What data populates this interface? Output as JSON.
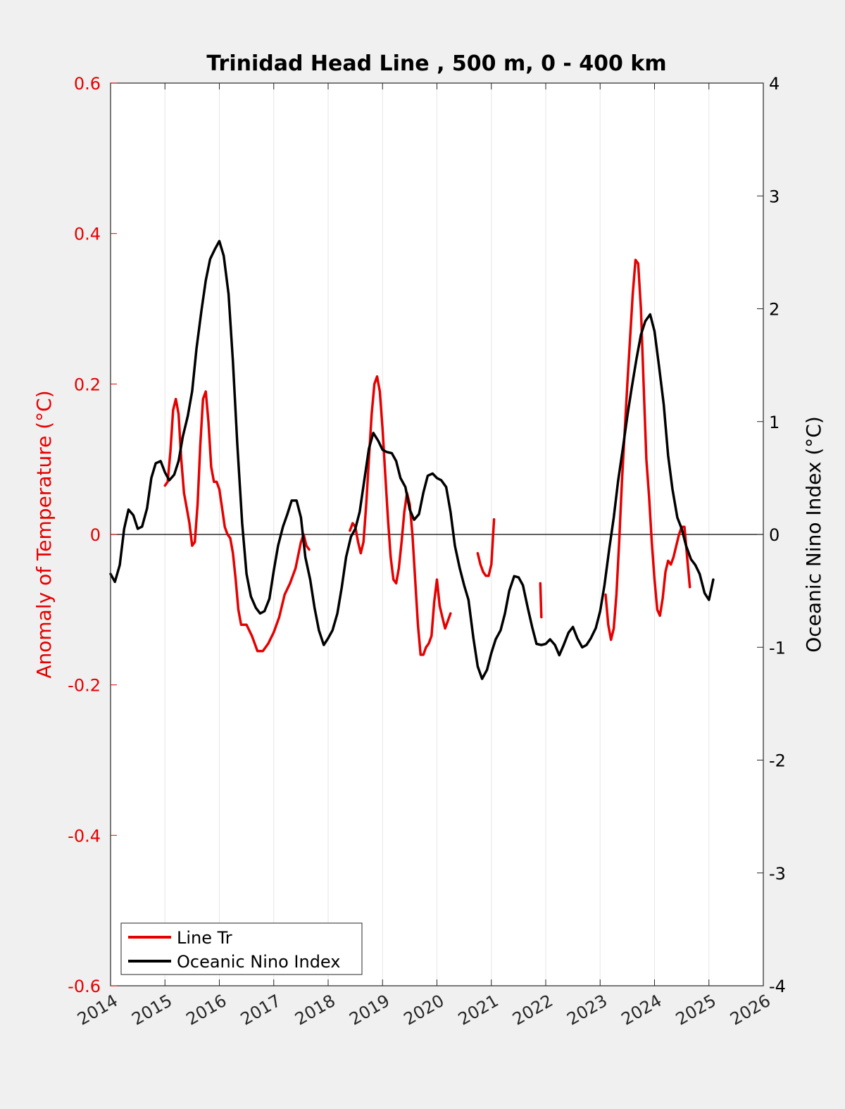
{
  "chart_data": {
    "type": "line",
    "title": "Trinidad Head Line , 500 m, 0 - 400 km",
    "xlabel": "",
    "ylabel_left": "Anomaly of Temperature (°C)",
    "ylabel_right": "Oceanic Nino Index (°C)",
    "xlim": [
      2014,
      2026
    ],
    "ylim_left": [
      -0.6,
      0.6
    ],
    "ylim_right": [
      -4,
      4
    ],
    "x_ticks": [
      "2014",
      "2015",
      "2016",
      "2017",
      "2018",
      "2019",
      "2020",
      "2021",
      "2022",
      "2023",
      "2024",
      "2025",
      "2026"
    ],
    "y_ticks_left": [
      "0.6",
      "0.4",
      "0.2",
      "0",
      "-0.2",
      "-0.4",
      "-0.6"
    ],
    "y_ticks_right": [
      "4",
      "3",
      "2",
      "1",
      "0",
      "-1",
      "-2",
      "-3",
      "-4"
    ],
    "grid": "vertical",
    "legend_position": "bottom-left",
    "colors": {
      "line_tr": "#e60000",
      "oni": "#000000"
    },
    "series": [
      {
        "name": "Line Tr",
        "axis": "left",
        "segments": [
          [
            [
              2015.0,
              0.065
            ],
            [
              2015.05,
              0.07
            ],
            [
              2015.1,
              0.11
            ],
            [
              2015.15,
              0.165
            ],
            [
              2015.2,
              0.18
            ],
            [
              2015.25,
              0.16
            ],
            [
              2015.3,
              0.1
            ],
            [
              2015.35,
              0.055
            ],
            [
              2015.4,
              0.035
            ],
            [
              2015.45,
              0.015
            ],
            [
              2015.5,
              -0.015
            ],
            [
              2015.55,
              -0.01
            ],
            [
              2015.6,
              0.04
            ],
            [
              2015.65,
              0.12
            ],
            [
              2015.7,
              0.18
            ],
            [
              2015.75,
              0.19
            ],
            [
              2015.8,
              0.15
            ],
            [
              2015.85,
              0.09
            ],
            [
              2015.9,
              0.07
            ],
            [
              2015.95,
              0.07
            ],
            [
              2016.0,
              0.06
            ],
            [
              2016.05,
              0.035
            ],
            [
              2016.1,
              0.01
            ],
            [
              2016.15,
              0.0
            ],
            [
              2016.2,
              -0.005
            ],
            [
              2016.25,
              -0.025
            ],
            [
              2016.3,
              -0.06
            ],
            [
              2016.35,
              -0.1
            ],
            [
              2016.4,
              -0.12
            ],
            [
              2016.5,
              -0.12
            ],
            [
              2016.6,
              -0.135
            ],
            [
              2016.7,
              -0.155
            ],
            [
              2016.8,
              -0.155
            ],
            [
              2016.9,
              -0.145
            ],
            [
              2017.0,
              -0.13
            ],
            [
              2017.1,
              -0.11
            ],
            [
              2017.2,
              -0.08
            ],
            [
              2017.3,
              -0.065
            ],
            [
              2017.4,
              -0.045
            ],
            [
              2017.5,
              -0.01
            ],
            [
              2017.55,
              0.0
            ],
            [
              2017.6,
              -0.015
            ],
            [
              2017.65,
              -0.02
            ]
          ],
          [
            [
              2018.4,
              0.005
            ],
            [
              2018.45,
              0.015
            ],
            [
              2018.5,
              0.01
            ],
            [
              2018.55,
              -0.01
            ],
            [
              2018.6,
              -0.025
            ],
            [
              2018.65,
              -0.01
            ],
            [
              2018.7,
              0.04
            ],
            [
              2018.75,
              0.1
            ],
            [
              2018.8,
              0.16
            ],
            [
              2018.85,
              0.2
            ],
            [
              2018.9,
              0.21
            ],
            [
              2018.95,
              0.19
            ],
            [
              2019.0,
              0.14
            ],
            [
              2019.05,
              0.08
            ],
            [
              2019.1,
              0.02
            ],
            [
              2019.15,
              -0.03
            ],
            [
              2019.2,
              -0.06
            ],
            [
              2019.25,
              -0.065
            ],
            [
              2019.3,
              -0.045
            ],
            [
              2019.35,
              -0.01
            ],
            [
              2019.4,
              0.03
            ],
            [
              2019.45,
              0.055
            ],
            [
              2019.5,
              0.04
            ],
            [
              2019.55,
              0.0
            ],
            [
              2019.6,
              -0.06
            ],
            [
              2019.65,
              -0.12
            ],
            [
              2019.7,
              -0.16
            ],
            [
              2019.75,
              -0.16
            ],
            [
              2019.8,
              -0.15
            ],
            [
              2019.85,
              -0.145
            ],
            [
              2019.9,
              -0.135
            ],
            [
              2019.95,
              -0.09
            ],
            [
              2020.0,
              -0.06
            ],
            [
              2020.05,
              -0.095
            ],
            [
              2020.1,
              -0.11
            ],
            [
              2020.15,
              -0.125
            ],
            [
              2020.2,
              -0.115
            ],
            [
              2020.25,
              -0.105
            ]
          ],
          [
            [
              2020.75,
              -0.025
            ],
            [
              2020.8,
              -0.04
            ],
            [
              2020.85,
              -0.05
            ],
            [
              2020.9,
              -0.055
            ],
            [
              2020.95,
              -0.055
            ],
            [
              2021.0,
              -0.04
            ],
            [
              2021.05,
              0.02
            ]
          ],
          [
            [
              2021.9,
              -0.065
            ],
            [
              2021.92,
              -0.11
            ]
          ],
          [
            [
              2023.1,
              -0.08
            ],
            [
              2023.15,
              -0.12
            ],
            [
              2023.2,
              -0.14
            ],
            [
              2023.25,
              -0.125
            ],
            [
              2023.3,
              -0.08
            ],
            [
              2023.35,
              -0.01
            ],
            [
              2023.4,
              0.07
            ],
            [
              2023.5,
              0.2
            ],
            [
              2023.6,
              0.32
            ],
            [
              2023.65,
              0.365
            ],
            [
              2023.7,
              0.36
            ],
            [
              2023.75,
              0.3
            ],
            [
              2023.8,
              0.2
            ],
            [
              2023.85,
              0.1
            ],
            [
              2023.9,
              0.05
            ],
            [
              2023.95,
              -0.01
            ],
            [
              2024.0,
              -0.06
            ],
            [
              2024.05,
              -0.1
            ],
            [
              2024.1,
              -0.108
            ],
            [
              2024.15,
              -0.085
            ],
            [
              2024.2,
              -0.05
            ],
            [
              2024.25,
              -0.035
            ],
            [
              2024.3,
              -0.04
            ],
            [
              2024.35,
              -0.03
            ],
            [
              2024.4,
              -0.015
            ],
            [
              2024.45,
              0.0
            ],
            [
              2024.5,
              0.01
            ],
            [
              2024.55,
              0.01
            ],
            [
              2024.6,
              -0.03
            ],
            [
              2024.65,
              -0.07
            ]
          ]
        ]
      },
      {
        "name": "Oceanic Nino Index",
        "axis": "right",
        "segments": [
          [
            [
              2014.0,
              -0.35
            ],
            [
              2014.08,
              -0.42
            ],
            [
              2014.17,
              -0.27
            ],
            [
              2014.25,
              0.05
            ],
            [
              2014.33,
              0.22
            ],
            [
              2014.42,
              0.17
            ],
            [
              2014.5,
              0.05
            ],
            [
              2014.58,
              0.07
            ],
            [
              2014.67,
              0.23
            ],
            [
              2014.75,
              0.5
            ],
            [
              2014.83,
              0.63
            ],
            [
              2014.92,
              0.65
            ],
            [
              2015.0,
              0.55
            ],
            [
              2015.08,
              0.48
            ],
            [
              2015.17,
              0.53
            ],
            [
              2015.25,
              0.65
            ],
            [
              2015.33,
              0.87
            ],
            [
              2015.42,
              1.05
            ],
            [
              2015.5,
              1.27
            ],
            [
              2015.58,
              1.65
            ],
            [
              2015.67,
              1.98
            ],
            [
              2015.75,
              2.25
            ],
            [
              2015.83,
              2.44
            ],
            [
              2015.92,
              2.53
            ],
            [
              2016.0,
              2.6
            ],
            [
              2016.08,
              2.47
            ],
            [
              2016.17,
              2.13
            ],
            [
              2016.25,
              1.53
            ],
            [
              2016.33,
              0.8
            ],
            [
              2016.42,
              0.1
            ],
            [
              2016.5,
              -0.35
            ],
            [
              2016.58,
              -0.55
            ],
            [
              2016.67,
              -0.65
            ],
            [
              2016.75,
              -0.7
            ],
            [
              2016.83,
              -0.68
            ],
            [
              2016.92,
              -0.57
            ],
            [
              2017.0,
              -0.32
            ],
            [
              2017.08,
              -0.1
            ],
            [
              2017.17,
              0.07
            ],
            [
              2017.25,
              0.18
            ],
            [
              2017.33,
              0.3
            ],
            [
              2017.42,
              0.3
            ],
            [
              2017.5,
              0.15
            ],
            [
              2017.58,
              -0.2
            ],
            [
              2017.67,
              -0.4
            ],
            [
              2017.75,
              -0.65
            ],
            [
              2017.83,
              -0.85
            ],
            [
              2017.92,
              -0.98
            ],
            [
              2018.0,
              -0.92
            ],
            [
              2018.08,
              -0.85
            ],
            [
              2018.17,
              -0.7
            ],
            [
              2018.25,
              -0.47
            ],
            [
              2018.33,
              -0.2
            ],
            [
              2018.42,
              -0.02
            ],
            [
              2018.5,
              0.05
            ],
            [
              2018.58,
              0.2
            ],
            [
              2018.67,
              0.5
            ],
            [
              2018.75,
              0.76
            ],
            [
              2018.83,
              0.9
            ],
            [
              2018.92,
              0.83
            ],
            [
              2019.0,
              0.75
            ],
            [
              2019.08,
              0.73
            ],
            [
              2019.17,
              0.72
            ],
            [
              2019.25,
              0.65
            ],
            [
              2019.33,
              0.5
            ],
            [
              2019.42,
              0.42
            ],
            [
              2019.5,
              0.22
            ],
            [
              2019.58,
              0.13
            ],
            [
              2019.67,
              0.18
            ],
            [
              2019.75,
              0.37
            ],
            [
              2019.83,
              0.52
            ],
            [
              2019.92,
              0.54
            ],
            [
              2020.0,
              0.5
            ],
            [
              2020.08,
              0.48
            ],
            [
              2020.17,
              0.42
            ],
            [
              2020.25,
              0.2
            ],
            [
              2020.33,
              -0.1
            ],
            [
              2020.42,
              -0.3
            ],
            [
              2020.5,
              -0.45
            ],
            [
              2020.58,
              -0.58
            ],
            [
              2020.67,
              -0.92
            ],
            [
              2020.75,
              -1.17
            ],
            [
              2020.83,
              -1.28
            ],
            [
              2020.92,
              -1.2
            ],
            [
              2021.0,
              -1.05
            ],
            [
              2021.08,
              -0.93
            ],
            [
              2021.17,
              -0.85
            ],
            [
              2021.25,
              -0.7
            ],
            [
              2021.33,
              -0.5
            ],
            [
              2021.42,
              -0.37
            ],
            [
              2021.5,
              -0.38
            ],
            [
              2021.58,
              -0.45
            ],
            [
              2021.67,
              -0.65
            ],
            [
              2021.75,
              -0.82
            ],
            [
              2021.83,
              -0.97
            ],
            [
              2021.92,
              -0.98
            ],
            [
              2022.0,
              -0.97
            ],
            [
              2022.08,
              -0.93
            ],
            [
              2022.17,
              -0.98
            ],
            [
              2022.25,
              -1.07
            ],
            [
              2022.33,
              -0.98
            ],
            [
              2022.42,
              -0.87
            ],
            [
              2022.5,
              -0.82
            ],
            [
              2022.58,
              -0.92
            ],
            [
              2022.67,
              -1.0
            ],
            [
              2022.75,
              -0.98
            ],
            [
              2022.83,
              -0.92
            ],
            [
              2022.92,
              -0.83
            ],
            [
              2023.0,
              -0.68
            ],
            [
              2023.08,
              -0.45
            ],
            [
              2023.17,
              -0.12
            ],
            [
              2023.25,
              0.15
            ],
            [
              2023.33,
              0.47
            ],
            [
              2023.42,
              0.77
            ],
            [
              2023.5,
              1.05
            ],
            [
              2023.58,
              1.3
            ],
            [
              2023.67,
              1.56
            ],
            [
              2023.75,
              1.77
            ],
            [
              2023.83,
              1.89
            ],
            [
              2023.92,
              1.95
            ],
            [
              2024.0,
              1.8
            ],
            [
              2024.08,
              1.5
            ],
            [
              2024.17,
              1.15
            ],
            [
              2024.25,
              0.7
            ],
            [
              2024.33,
              0.4
            ],
            [
              2024.42,
              0.15
            ],
            [
              2024.5,
              0.05
            ],
            [
              2024.58,
              -0.1
            ],
            [
              2024.67,
              -0.22
            ],
            [
              2024.75,
              -0.27
            ],
            [
              2024.83,
              -0.35
            ],
            [
              2024.92,
              -0.52
            ],
            [
              2025.0,
              -0.58
            ],
            [
              2025.08,
              -0.4
            ]
          ]
        ]
      }
    ]
  }
}
